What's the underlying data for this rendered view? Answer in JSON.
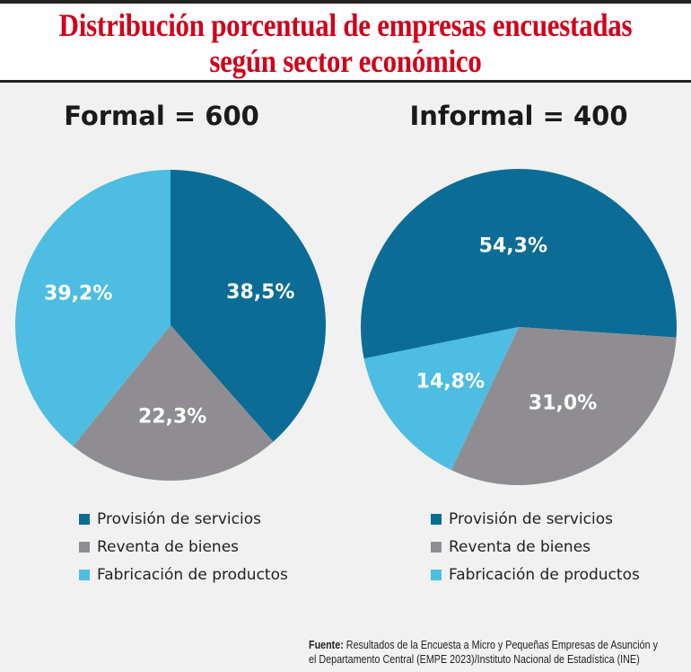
{
  "title_line1": "Distribución porcentual de empresas encuestadas",
  "title_line2": "según sector económico",
  "chart_data": [
    {
      "type": "pie",
      "title": "Formal = 600",
      "categories": [
        "Provisión de servicios",
        "Reventa de bienes",
        "Fabricación de productos"
      ],
      "values": [
        38.5,
        22.3,
        39.2
      ],
      "labels": [
        "38,5%",
        "22,3%",
        "39,2%"
      ],
      "colors": [
        "#0b6d96",
        "#8f8d91",
        "#4dbde2"
      ],
      "legend": "bottom"
    },
    {
      "type": "pie",
      "title": "Informal = 400",
      "categories": [
        "Provisión de servicios",
        "Reventa de bienes",
        "Fabricación de productos"
      ],
      "values": [
        54.3,
        31.0,
        14.8
      ],
      "labels": [
        "54,3%",
        "31,0%",
        "14,8%"
      ],
      "colors": [
        "#0b6d96",
        "#8f8d91",
        "#4dbde2"
      ],
      "legend": "bottom"
    }
  ],
  "source_label": "Fuente:",
  "source_text": " Resultados de la Encuesta a Micro y Pequeñas Empresas de Asunción y",
  "source_text2": "el Departamento Central (EMPE 2023)/Instituto Nacional de Estadística (INE)"
}
